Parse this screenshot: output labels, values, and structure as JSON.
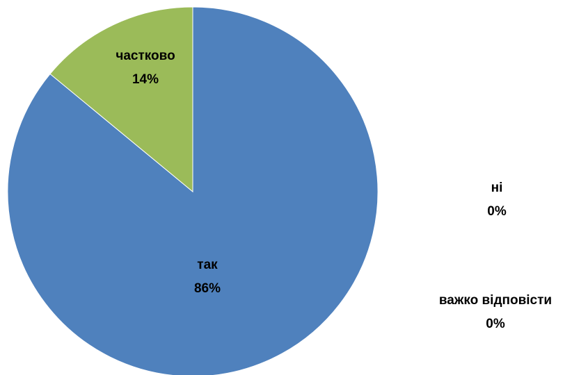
{
  "chart_data": {
    "type": "pie",
    "slices": [
      {
        "label": "так",
        "value": 86,
        "value_label": "86%",
        "color": "#4F81BD"
      },
      {
        "label": "частково",
        "value": 14,
        "value_label": "14%",
        "color": "#9BBB59"
      },
      {
        "label": "ні",
        "value": 0,
        "value_label": "0%",
        "color": "#C0504D"
      },
      {
        "label": "важко відповісти",
        "value": 0,
        "value_label": "0%",
        "color": "#8064A2"
      }
    ],
    "start_angle_deg": 0,
    "direction": "clockwise"
  }
}
